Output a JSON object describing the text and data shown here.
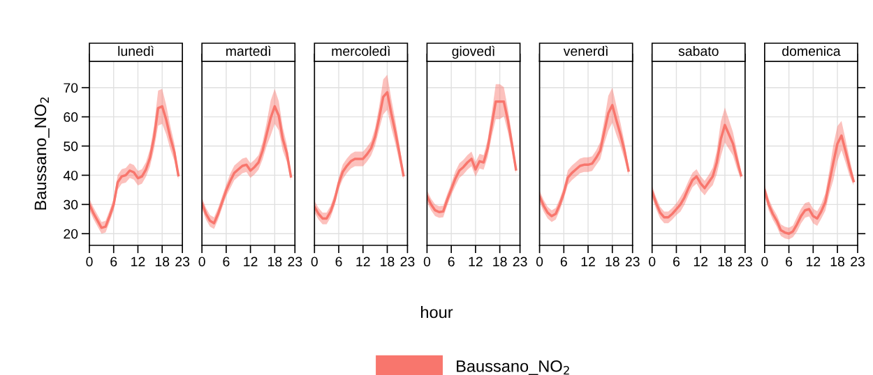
{
  "chart_data": [
    {
      "type": "line",
      "title": "lunedì",
      "ylabel": "Baussano_NO$_{2}$",
      "x": [
        0,
        1,
        2,
        3,
        4,
        5,
        6,
        7,
        8,
        9,
        10,
        11,
        12,
        13,
        14,
        15,
        16,
        17,
        18,
        19,
        20,
        21,
        22
      ],
      "xlim": [
        0,
        23
      ],
      "xticks": [
        0,
        6,
        12,
        18,
        23
      ],
      "ylim": [
        16,
        79
      ],
      "yticks": [
        20,
        30,
        40,
        50,
        60,
        70
      ],
      "grid": true,
      "series": [
        {
          "color": "#f8766d",
          "values": [
            30,
            27,
            24.5,
            22,
            22.4,
            26,
            30,
            37.6,
            39.6,
            40,
            41.6,
            41,
            39,
            39.6,
            42,
            46,
            53,
            63,
            63.6,
            59,
            53,
            48,
            40
          ],
          "lower": [
            28,
            25,
            22.5,
            20,
            20.4,
            24,
            28,
            35.1,
            37.1,
            37.5,
            39.1,
            38.5,
            36.5,
            37.1,
            39.5,
            43,
            49,
            57,
            57.6,
            54,
            49,
            45,
            38.5
          ],
          "upper": [
            32,
            29,
            26.5,
            24,
            24.4,
            28,
            32,
            40.1,
            42.1,
            42.5,
            44.1,
            43.5,
            41.5,
            42.1,
            44.5,
            49,
            57,
            69,
            69.6,
            64,
            57,
            51,
            41.5
          ]
        }
      ]
    },
    {
      "type": "line",
      "title": "martedì",
      "x": [
        0,
        1,
        2,
        3,
        4,
        5,
        6,
        7,
        8,
        9,
        10,
        11,
        12,
        13,
        14,
        15,
        16,
        17,
        18,
        19,
        20,
        21,
        22
      ],
      "xlim": [
        0,
        23
      ],
      "xticks": [
        0,
        6,
        12,
        18,
        23
      ],
      "ylim": [
        16,
        79
      ],
      "yticks": [
        20,
        30,
        40,
        50,
        60,
        70
      ],
      "grid": true,
      "tick_labels": "x",
      "series": [
        {
          "color": "#f8766d",
          "values": [
            30.4,
            26.8,
            24.4,
            23.6,
            26.8,
            30.8,
            34.8,
            38,
            40.8,
            42,
            43.2,
            43.6,
            41.6,
            42.8,
            44.4,
            48.4,
            54,
            59.6,
            63.6,
            60.4,
            52.4,
            47.6,
            39.6
          ],
          "lower": [
            28.4,
            24.8,
            22.4,
            21.6,
            24.8,
            28.8,
            32.8,
            35.5,
            38.3,
            39.5,
            40.7,
            41.1,
            39.1,
            40.3,
            41.9,
            45.4,
            50,
            53.6,
            57.6,
            55.4,
            48.4,
            44.6,
            38.1
          ],
          "upper": [
            32.4,
            28.8,
            26.4,
            25.6,
            28.8,
            32.8,
            36.8,
            40.5,
            43.3,
            44.5,
            45.7,
            46.1,
            44.1,
            45.3,
            46.9,
            51.4,
            58,
            65.6,
            69.6,
            65.4,
            56.4,
            50.6,
            41.1
          ]
        }
      ]
    },
    {
      "type": "line",
      "title": "mercoledì",
      "x": [
        0,
        1,
        2,
        3,
        4,
        5,
        6,
        7,
        8,
        9,
        10,
        11,
        12,
        13,
        14,
        15,
        16,
        17,
        18,
        19,
        20,
        21,
        22
      ],
      "xlim": [
        0,
        23
      ],
      "xticks": [
        0,
        6,
        12,
        18,
        23
      ],
      "ylim": [
        16,
        79
      ],
      "yticks": [
        20,
        30,
        40,
        50,
        60,
        70
      ],
      "grid": true,
      "tick_labels": "x",
      "series": [
        {
          "color": "#f8766d",
          "values": [
            29.2,
            26.8,
            25.2,
            25.2,
            27.6,
            31.6,
            37.2,
            41.2,
            43.2,
            44.8,
            45.6,
            45.6,
            45.6,
            47.2,
            49.2,
            53.2,
            59.6,
            66.8,
            68.4,
            61.2,
            54.8,
            47.6,
            40
          ],
          "lower": [
            27.2,
            24.8,
            23.2,
            23.2,
            25.6,
            29.6,
            35.2,
            38.7,
            40.7,
            42.3,
            43.1,
            43.1,
            43.1,
            44.7,
            46.7,
            50.2,
            55.6,
            60.8,
            62.4,
            56.2,
            50.8,
            44.6,
            38.5
          ],
          "upper": [
            31.2,
            28.8,
            27.2,
            27.2,
            29.6,
            33.6,
            39.2,
            43.7,
            45.7,
            47.3,
            48.1,
            48.1,
            48.1,
            49.7,
            51.7,
            56.2,
            63.6,
            72.8,
            74.4,
            66.2,
            58.8,
            50.6,
            41.5
          ]
        }
      ]
    },
    {
      "type": "line",
      "title": "giovedì",
      "xlabel": "hour",
      "legend": "bottom",
      "x": [
        0,
        1,
        2,
        3,
        4,
        5,
        6,
        7,
        8,
        9,
        10,
        11,
        12,
        13,
        14,
        15,
        16,
        17,
        18,
        19,
        20,
        21,
        22
      ],
      "xlim": [
        0,
        23
      ],
      "xticks": [
        0,
        6,
        12,
        18,
        23
      ],
      "ylim": [
        16,
        79
      ],
      "yticks": [
        20,
        30,
        40,
        50,
        60,
        70
      ],
      "grid": true,
      "tick_labels": "x",
      "series": [
        {
          "name": "Baussano_NO$_{2}$",
          "color": "#f8766d",
          "values": [
            32.8,
            30,
            28,
            27.4,
            27.6,
            31.6,
            35.2,
            38.8,
            41.6,
            42.8,
            44.4,
            45.6,
            42,
            44.8,
            44.4,
            49.2,
            57.2,
            65.2,
            65.2,
            65.2,
            58.8,
            50.8,
            42
          ],
          "lower": [
            30.8,
            28,
            26,
            25.4,
            25.6,
            29.6,
            33.2,
            36.3,
            39.1,
            40.3,
            41.9,
            43.1,
            39.5,
            42.3,
            41.9,
            46.2,
            53.2,
            59.2,
            59.2,
            60.2,
            54.8,
            47.8,
            40.5
          ],
          "upper": [
            34.8,
            32,
            30,
            29.4,
            29.6,
            33.6,
            37.2,
            41.3,
            44.1,
            45.3,
            46.9,
            48.1,
            44.5,
            47.3,
            46.9,
            52.2,
            61.2,
            71.2,
            71.2,
            70.2,
            62.8,
            53.8,
            43.5
          ]
        }
      ]
    },
    {
      "type": "line",
      "title": "venerdì",
      "x": [
        0,
        1,
        2,
        3,
        4,
        5,
        6,
        7,
        8,
        9,
        10,
        11,
        12,
        13,
        14,
        15,
        16,
        17,
        18,
        19,
        20,
        21,
        22
      ],
      "xlim": [
        0,
        23
      ],
      "xticks": [
        0,
        6,
        12,
        18,
        23
      ],
      "ylim": [
        16,
        79
      ],
      "yticks": [
        20,
        30,
        40,
        50,
        60,
        70
      ],
      "grid": true,
      "tick_labels": "x",
      "series": [
        {
          "color": "#f8766d",
          "values": [
            32.8,
            29.6,
            27.2,
            26,
            26.8,
            30,
            34,
            39.2,
            40.8,
            42,
            43.2,
            43.6,
            43.6,
            44,
            46,
            48.4,
            54.8,
            61.2,
            64,
            58.8,
            54,
            48.4,
            41.6
          ],
          "lower": [
            30.8,
            27.6,
            25.2,
            24,
            24.8,
            28,
            32,
            36.7,
            38.3,
            39.5,
            40.7,
            41.1,
            41.1,
            41.5,
            43.5,
            45.4,
            50.8,
            55.2,
            58,
            53.8,
            50,
            45.4,
            40.1
          ],
          "upper": [
            34.8,
            31.6,
            29.2,
            28,
            28.8,
            32,
            36,
            41.7,
            43.3,
            44.5,
            45.7,
            46.1,
            46.1,
            46.5,
            48.5,
            51.4,
            58.8,
            67.2,
            70,
            63.8,
            58,
            51.4,
            43.1
          ]
        }
      ]
    },
    {
      "type": "line",
      "title": "sabato",
      "x": [
        0,
        1,
        2,
        3,
        4,
        5,
        6,
        7,
        8,
        9,
        10,
        11,
        12,
        13,
        14,
        15,
        16,
        17,
        18,
        19,
        20,
        21,
        22
      ],
      "xlim": [
        0,
        23
      ],
      "xticks": [
        0,
        6,
        12,
        18,
        23
      ],
      "ylim": [
        16,
        79
      ],
      "yticks": [
        20,
        30,
        40,
        50,
        60,
        70
      ],
      "grid": true,
      "tick_labels": "x",
      "series": [
        {
          "color": "#f8766d",
          "values": [
            34.4,
            30.4,
            27.2,
            25.6,
            25.6,
            26.8,
            28.4,
            30,
            32.4,
            35.6,
            38.4,
            39.6,
            37.2,
            35.6,
            37.6,
            39.6,
            44.4,
            52.4,
            57.2,
            54,
            50.8,
            45.2,
            40
          ],
          "lower": [
            32.4,
            28.4,
            25.2,
            23.6,
            23.6,
            24.8,
            26.4,
            27.5,
            29.9,
            33.1,
            35.9,
            37.1,
            34.7,
            33.1,
            35.1,
            36.6,
            40.4,
            46.4,
            51.2,
            49,
            46.8,
            42.2,
            38.5
          ],
          "upper": [
            36.4,
            32.4,
            29.2,
            27.6,
            27.6,
            28.8,
            30.4,
            32.5,
            34.9,
            38.1,
            40.9,
            42.1,
            39.7,
            38.1,
            40.1,
            42.6,
            48.4,
            58.4,
            63.2,
            59,
            54.8,
            48.2,
            41.5
          ]
        }
      ]
    },
    {
      "type": "line",
      "title": "domenica",
      "x": [
        0,
        1,
        2,
        3,
        4,
        5,
        6,
        7,
        8,
        9,
        10,
        11,
        12,
        13,
        14,
        15,
        16,
        17,
        18,
        19,
        20,
        21,
        22
      ],
      "xlim": [
        0,
        23
      ],
      "xticks": [
        0,
        6,
        12,
        18,
        23
      ],
      "ylim": [
        16,
        79
      ],
      "yticks": [
        20,
        30,
        40,
        50,
        60,
        70
      ],
      "grid": true,
      "tick_labels": "x",
      "series": [
        {
          "color": "#f8766d",
          "values": [
            34.8,
            30,
            26.8,
            24.4,
            21.2,
            20.4,
            20,
            20.8,
            23.2,
            26,
            28,
            28.4,
            26,
            25.2,
            27.6,
            30.8,
            37.6,
            44.4,
            50.8,
            53.6,
            48.4,
            42.8,
            38
          ],
          "lower": [
            32.8,
            28,
            24.8,
            22.4,
            19.2,
            18.4,
            18,
            18.8,
            20.7,
            23.5,
            25.5,
            25.9,
            23.5,
            22.7,
            25.1,
            27.8,
            33.6,
            38.4,
            44.8,
            48.6,
            44.4,
            39.8,
            36.5
          ],
          "upper": [
            36.8,
            32,
            28.8,
            26.4,
            23.2,
            22.4,
            22,
            22.8,
            25.7,
            28.5,
            30.5,
            30.9,
            28.5,
            27.7,
            30.1,
            33.8,
            41.6,
            50.4,
            56.8,
            58.6,
            52.4,
            45.8,
            39.5
          ]
        }
      ]
    }
  ]
}
